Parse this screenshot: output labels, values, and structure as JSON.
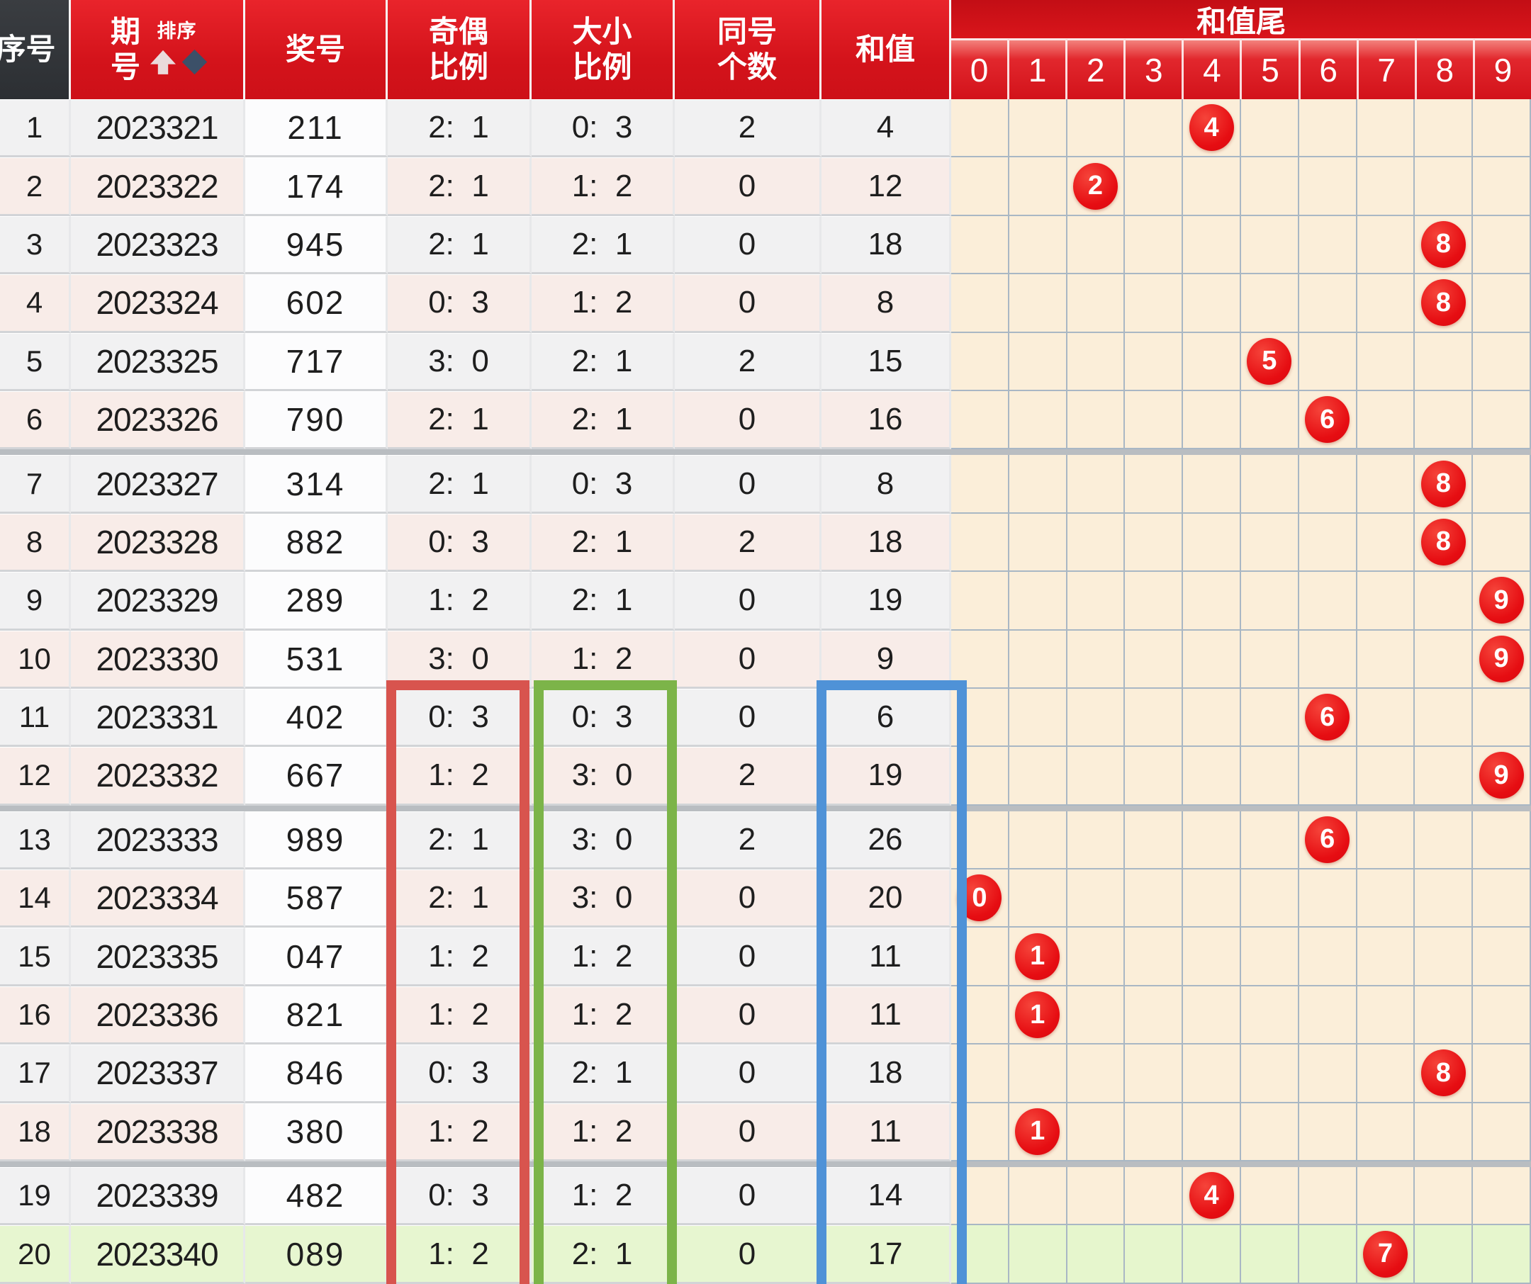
{
  "header": {
    "seq": "序号",
    "period_line1": "期",
    "period_line2": "号",
    "sort_label": "排序",
    "prize": "奖号",
    "odd_even_line1": "奇偶",
    "odd_even_line2": "比例",
    "big_small_line1": "大小",
    "big_small_line2": "比例",
    "same_line1": "同号",
    "same_line2": "个数",
    "sum": "和值",
    "sum_tail": "和值尾",
    "tail_digits": [
      "0",
      "1",
      "2",
      "3",
      "4",
      "5",
      "6",
      "7",
      "8",
      "9"
    ]
  },
  "rows": [
    {
      "seq": "1",
      "period": "2023321",
      "number": "211",
      "odd_even": "2:  1",
      "big_small": "0:  3",
      "same_count": "2",
      "sum": "4",
      "tail": 4
    },
    {
      "seq": "2",
      "period": "2023322",
      "number": "174",
      "odd_even": "2:  1",
      "big_small": "1:  2",
      "same_count": "0",
      "sum": "12",
      "tail": 2
    },
    {
      "seq": "3",
      "period": "2023323",
      "number": "945",
      "odd_even": "2:  1",
      "big_small": "2:  1",
      "same_count": "0",
      "sum": "18",
      "tail": 8
    },
    {
      "seq": "4",
      "period": "2023324",
      "number": "602",
      "odd_even": "0:  3",
      "big_small": "1:  2",
      "same_count": "0",
      "sum": "8",
      "tail": 8
    },
    {
      "seq": "5",
      "period": "2023325",
      "number": "717",
      "odd_even": "3:  0",
      "big_small": "2:  1",
      "same_count": "2",
      "sum": "15",
      "tail": 5
    },
    {
      "seq": "6",
      "period": "2023326",
      "number": "790",
      "odd_even": "2:  1",
      "big_small": "2:  1",
      "same_count": "0",
      "sum": "16",
      "tail": 6
    },
    {
      "seq": "7",
      "period": "2023327",
      "number": "314",
      "odd_even": "2:  1",
      "big_small": "0:  3",
      "same_count": "0",
      "sum": "8",
      "tail": 8
    },
    {
      "seq": "8",
      "period": "2023328",
      "number": "882",
      "odd_even": "0:  3",
      "big_small": "2:  1",
      "same_count": "2",
      "sum": "18",
      "tail": 8
    },
    {
      "seq": "9",
      "period": "2023329",
      "number": "289",
      "odd_even": "1:  2",
      "big_small": "2:  1",
      "same_count": "0",
      "sum": "19",
      "tail": 9
    },
    {
      "seq": "10",
      "period": "2023330",
      "number": "531",
      "odd_even": "3:  0",
      "big_small": "1:  2",
      "same_count": "0",
      "sum": "9",
      "tail": 9
    },
    {
      "seq": "11",
      "period": "2023331",
      "number": "402",
      "odd_even": "0:  3",
      "big_small": "0:  3",
      "same_count": "0",
      "sum": "6",
      "tail": 6
    },
    {
      "seq": "12",
      "period": "2023332",
      "number": "667",
      "odd_even": "1:  2",
      "big_small": "3:  0",
      "same_count": "2",
      "sum": "19",
      "tail": 9
    },
    {
      "seq": "13",
      "period": "2023333",
      "number": "989",
      "odd_even": "2:  1",
      "big_small": "3:  0",
      "same_count": "2",
      "sum": "26",
      "tail": 6
    },
    {
      "seq": "14",
      "period": "2023334",
      "number": "587",
      "odd_even": "2:  1",
      "big_small": "3:  0",
      "same_count": "0",
      "sum": "20",
      "tail": 0
    },
    {
      "seq": "15",
      "period": "2023335",
      "number": "047",
      "odd_even": "1:  2",
      "big_small": "1:  2",
      "same_count": "0",
      "sum": "11",
      "tail": 1
    },
    {
      "seq": "16",
      "period": "2023336",
      "number": "821",
      "odd_even": "1:  2",
      "big_small": "1:  2",
      "same_count": "0",
      "sum": "11",
      "tail": 1
    },
    {
      "seq": "17",
      "period": "2023337",
      "number": "846",
      "odd_even": "0:  3",
      "big_small": "2:  1",
      "same_count": "0",
      "sum": "18",
      "tail": 8
    },
    {
      "seq": "18",
      "period": "2023338",
      "number": "380",
      "odd_even": "1:  2",
      "big_small": "1:  2",
      "same_count": "0",
      "sum": "11",
      "tail": 1
    },
    {
      "seq": "19",
      "period": "2023339",
      "number": "482",
      "odd_even": "0:  3",
      "big_small": "1:  2",
      "same_count": "0",
      "sum": "14",
      "tail": 4
    },
    {
      "seq": "20",
      "period": "2023340",
      "number": "089",
      "odd_even": "1:  2",
      "big_small": "2:  1",
      "same_count": "0",
      "sum": "17",
      "tail": 7,
      "highlight": true
    }
  ],
  "group_separator_after_rows": [
    6,
    12,
    18
  ],
  "highlight_boxes": [
    {
      "name": "odd-even-ratio-box",
      "color": "#d8544e"
    },
    {
      "name": "big-small-ratio-box",
      "color": "#7cb449"
    },
    {
      "name": "sum-value-box",
      "color": "#4f92d7"
    }
  ],
  "colors": {
    "header_red": "#d4131b",
    "band_red": "#c30e15",
    "seq_header_dark": "#2c2f33",
    "ball_red": "#e60d12",
    "row_gray": "#f1f1f2",
    "row_pink": "#f8ece8",
    "row_green": "#e7f6d0",
    "prize_col_white": "#fcfcfd",
    "tail_cell_cream": "#fbeed9",
    "tail_grid_line": "#a9b7c4",
    "separator_gray": "#b9bdc1",
    "box_red": "#d8544e",
    "box_green": "#7cb449",
    "box_blue": "#4f92d7"
  }
}
